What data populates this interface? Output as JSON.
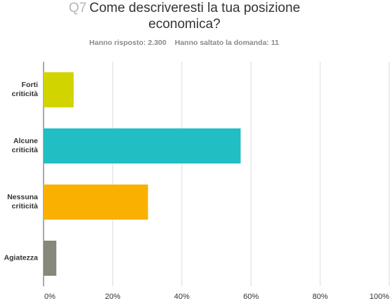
{
  "chart_data": {
    "type": "bar",
    "orientation": "horizontal",
    "question_number": "Q7",
    "title": "Come descriveresti la tua posizione economica?",
    "answered": "Hanno risposto: 2.300",
    "skipped": "Hanno saltato la domanda: 11",
    "categories": [
      "Forti criticità",
      "Alcune criticità",
      "Nessuna criticità",
      "Agiatezza"
    ],
    "values": [
      8.7,
      57,
      30.2,
      3.7
    ],
    "colors": [
      "#d2d400",
      "#21bec3",
      "#f9b000",
      "#87877a"
    ],
    "xlim": [
      0,
      100
    ],
    "xticks": [
      {
        "value": 0,
        "label": "0%"
      },
      {
        "value": 20,
        "label": "20%"
      },
      {
        "value": 40,
        "label": "40%"
      },
      {
        "value": 60,
        "label": "60%"
      },
      {
        "value": 80,
        "label": "80%"
      },
      {
        "value": 100,
        "label": "100%"
      }
    ],
    "grid": true
  }
}
